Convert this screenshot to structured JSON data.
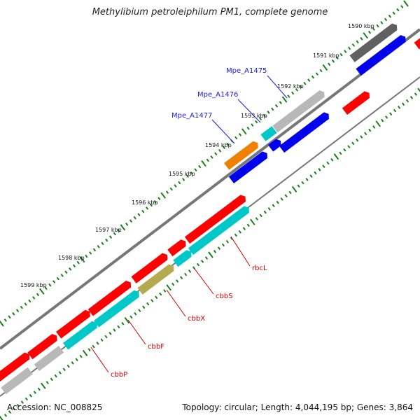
{
  "title": "Methylibium petroleiphilum PM1, complete genome",
  "accession": "Accession: NC_008825",
  "summary": "Topology: circular; Length: 4,044,195 bp; Genes: 3,864",
  "colors": {
    "red": "#ff0000",
    "cyan": "#00c8c8",
    "blue": "#0000ee",
    "orange": "#f08000",
    "olive": "#b4aa50",
    "gray": "#b8b8b8",
    "darkgray": "#606060",
    "tick": "#1a7f1a",
    "labelBlue": "#1a1add",
    "labelRed": "#cc0000"
  },
  "ticks": [
    {
      "kbp": 1590,
      "label": "1590 kbp"
    },
    {
      "kbp": 1591,
      "label": "1591 kbp"
    },
    {
      "kbp": 1592,
      "label": "1592 kbp"
    },
    {
      "kbp": 1593,
      "label": "1593 kbp"
    },
    {
      "kbp": 1594,
      "label": "1594 kbp"
    },
    {
      "kbp": 1595,
      "label": "1595 kbp"
    },
    {
      "kbp": 1596,
      "label": "1596 kbp"
    },
    {
      "kbp": 1597,
      "label": "1597 kbp"
    },
    {
      "kbp": 1598,
      "label": "1598 kbp"
    },
    {
      "kbp": 1599,
      "label": "1599 kbp"
    }
  ],
  "labels": {
    "blue": [
      "Mpe_A1475",
      "Mpe_A1476",
      "Mpe_A1477"
    ],
    "red": [
      "rbcL",
      "cbbS",
      "cbbX",
      "cbbF",
      "cbbP"
    ]
  }
}
